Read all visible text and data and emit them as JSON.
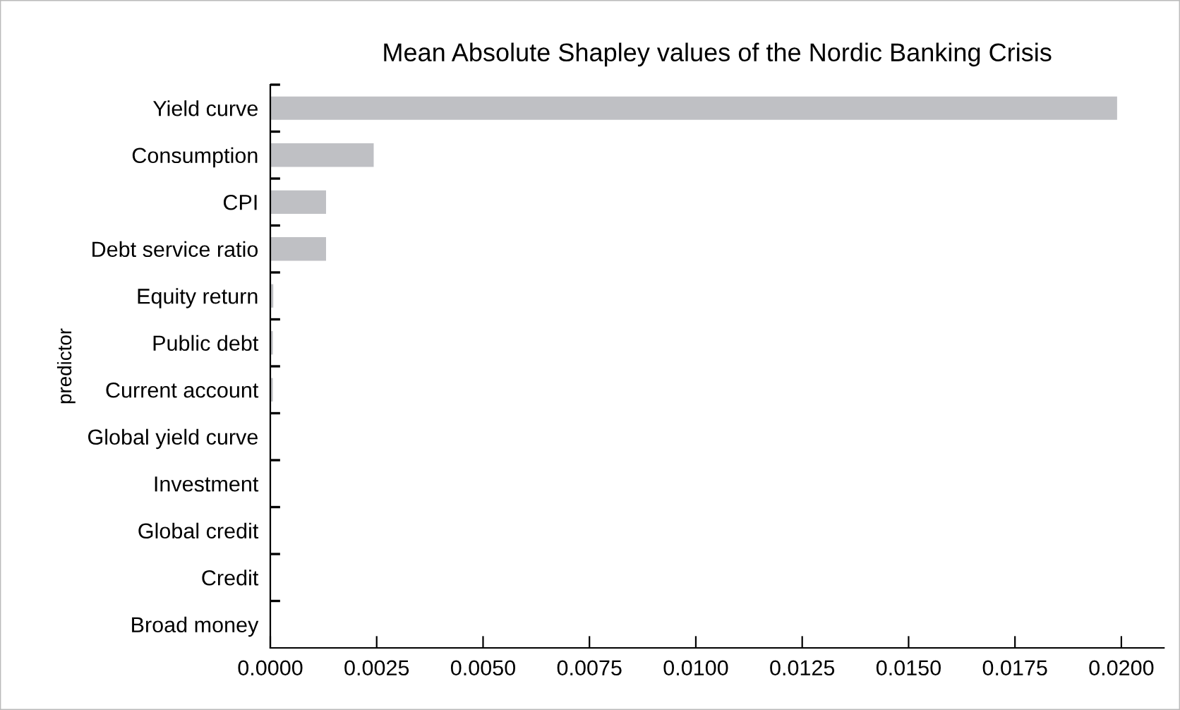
{
  "chart_data": {
    "type": "bar",
    "orientation": "horizontal",
    "title": "Mean Absolute Shapley values of the Nordic Banking Crisis",
    "ylabel": "predictor",
    "categories": [
      "Yield curve",
      "Consumption",
      "CPI",
      "Debt service ratio",
      "Equity return",
      "Public debt",
      "Current account",
      "Global yield curve",
      "Investment",
      "Global credit",
      "Credit",
      "Broad money"
    ],
    "values": [
      0.0199,
      0.00243,
      0.00131,
      0.00131,
      7e-05,
      6e-05,
      6e-05,
      0,
      0,
      0,
      0,
      0
    ],
    "color": "#bfc0c4",
    "xlim": [
      0,
      0.021
    ],
    "xticks": [
      {
        "value": 0,
        "label": "0.0000"
      },
      {
        "value": 0.0025,
        "label": "0.0025"
      },
      {
        "value": 0.005,
        "label": "0.0050"
      },
      {
        "value": 0.0075,
        "label": "0.0075"
      },
      {
        "value": 0.01,
        "label": "0.0100"
      },
      {
        "value": 0.0125,
        "label": "0.0125"
      },
      {
        "value": 0.015,
        "label": "0.0150"
      },
      {
        "value": 0.0175,
        "label": "0.0175"
      },
      {
        "value": 0.02,
        "label": "0.0200"
      }
    ],
    "grid": false,
    "legend": false
  }
}
